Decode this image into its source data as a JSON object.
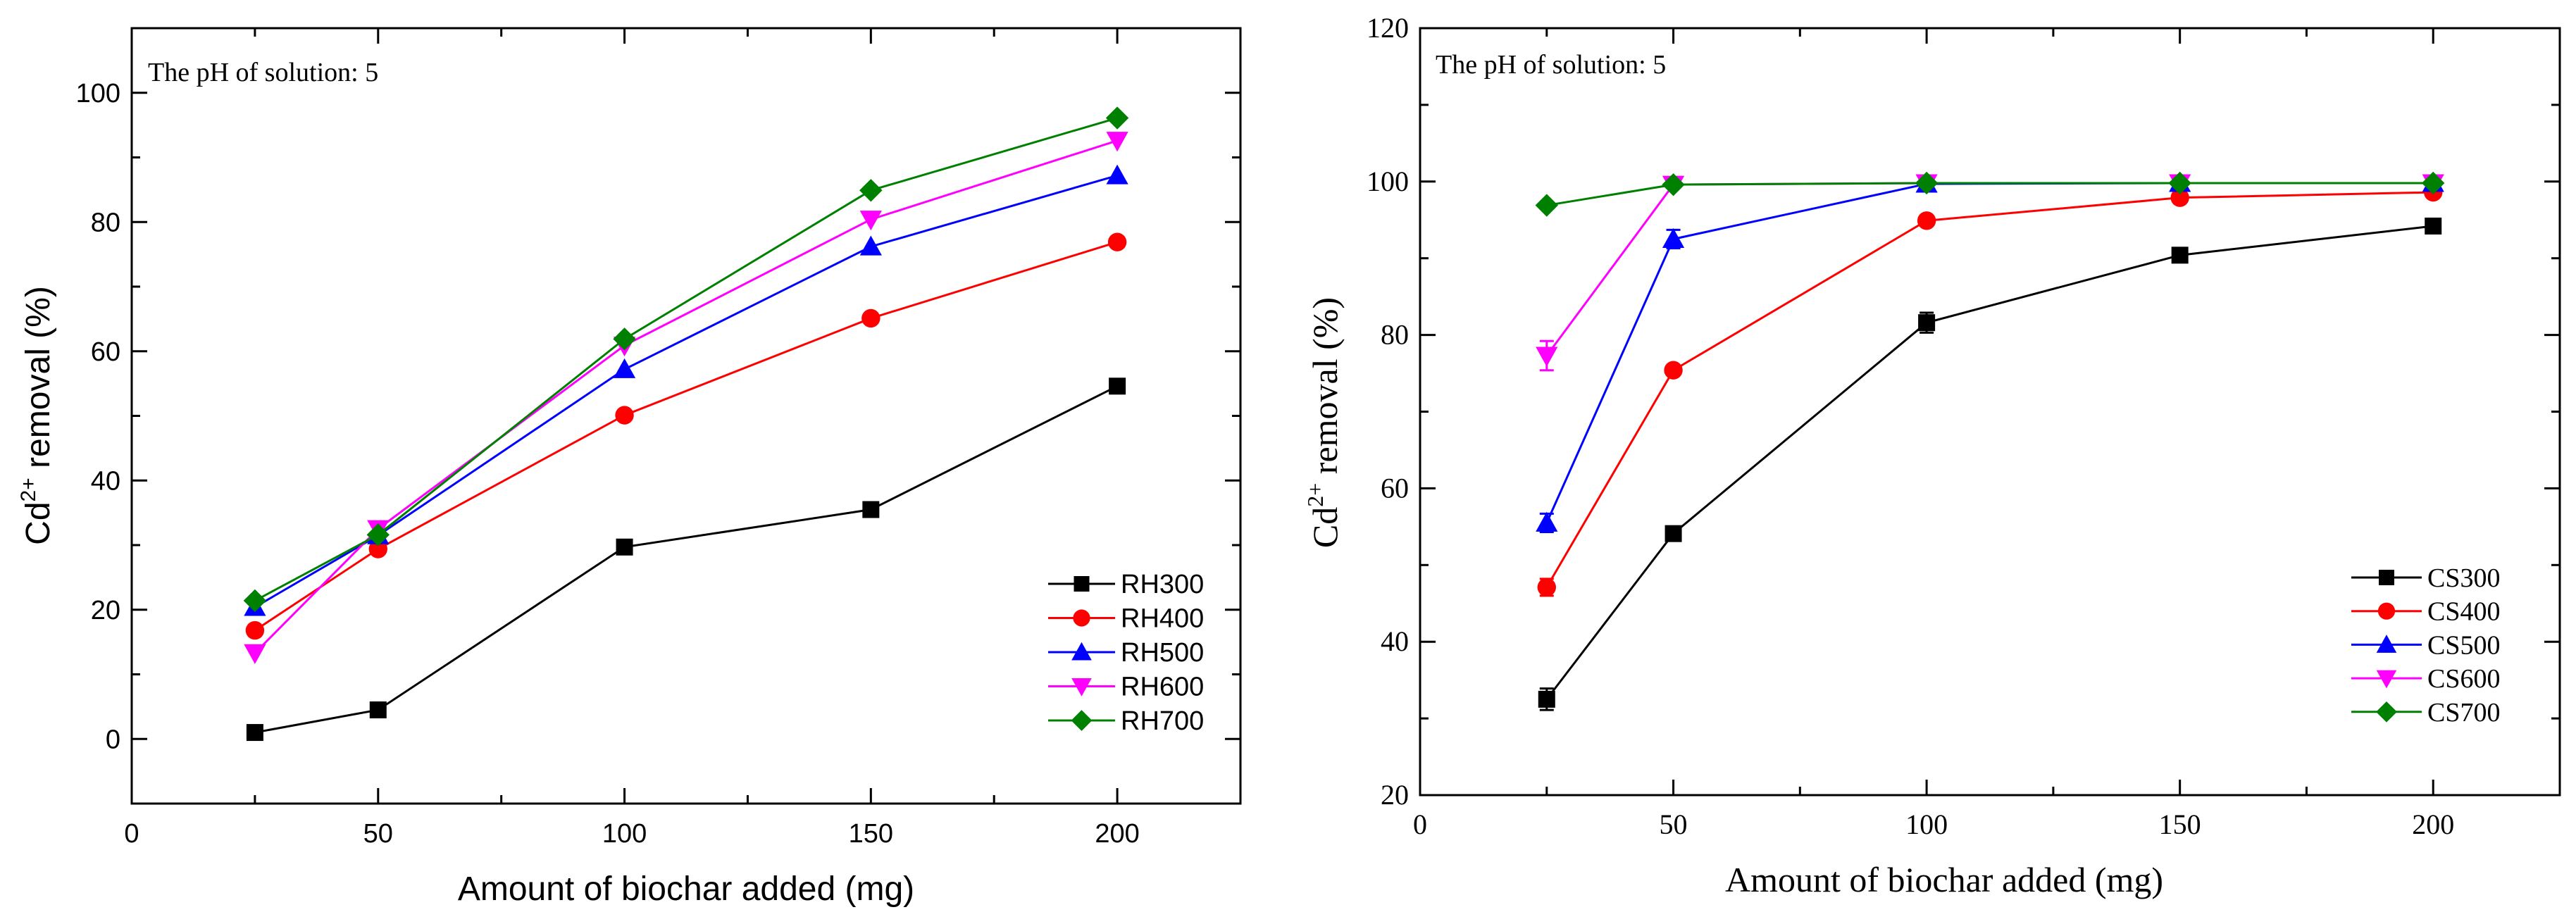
{
  "chart_data": [
    {
      "type": "line",
      "annotation": "The pH of solution: 5",
      "xlabel": "Amount of biochar added (mg)",
      "ylabel_main": "Cd",
      "ylabel_sup": "2+",
      "ylabel_rest": " removal (%)",
      "xlim": [
        0,
        225
      ],
      "ylim": [
        -10,
        110
      ],
      "xticks": [
        0,
        50,
        100,
        150,
        200
      ],
      "yticks": [
        0,
        20,
        40,
        60,
        80,
        100
      ],
      "x": [
        25,
        50,
        100,
        150,
        200
      ],
      "legend_position": "bottom-right",
      "grid": false,
      "series": [
        {
          "name": "RH300",
          "color": "#000000",
          "marker": "square",
          "values": [
            1,
            4.5,
            29.7,
            35.5,
            54.6
          ]
        },
        {
          "name": "RH400",
          "color": "#ff0000",
          "marker": "circle",
          "values": [
            16.8,
            29.4,
            50.1,
            65.1,
            76.9
          ]
        },
        {
          "name": "RH500",
          "color": "#0000ff",
          "marker": "triangle-up",
          "values": [
            20.4,
            31.5,
            57.2,
            76.2,
            87.2
          ]
        },
        {
          "name": "RH600",
          "color": "#ff00ff",
          "marker": "triangle-down",
          "values": [
            13.3,
            32.5,
            60.9,
            80.4,
            92.6
          ]
        },
        {
          "name": "RH700",
          "color": "#008000",
          "marker": "diamond",
          "values": [
            21.4,
            31.6,
            61.9,
            84.9,
            96.1
          ]
        }
      ]
    },
    {
      "type": "line",
      "annotation": "The pH of solution: 5",
      "xlabel": "Amount of biochar added (mg)",
      "ylabel_main": "Cd",
      "ylabel_sup": "2+",
      "ylabel_rest": " removal (%)",
      "xlim": [
        0,
        225
      ],
      "ylim": [
        20,
        120
      ],
      "xticks": [
        0,
        50,
        100,
        150,
        200
      ],
      "yticks": [
        20,
        40,
        60,
        80,
        100,
        120
      ],
      "x": [
        25,
        50,
        100,
        150,
        200
      ],
      "legend_position": "bottom-right",
      "grid": false,
      "series": [
        {
          "name": "CS300",
          "color": "#000000",
          "marker": "square",
          "values": [
            32.5,
            54.1,
            81.6,
            90.4,
            94.2
          ],
          "errors": [
            1.4,
            0.8,
            1.3,
            0.6,
            0.6
          ]
        },
        {
          "name": "CS400",
          "color": "#ff0000",
          "marker": "circle",
          "values": [
            47.1,
            75.4,
            94.9,
            97.9,
            98.6
          ],
          "errors": [
            1.1,
            0.6,
            0.6,
            0.4,
            0.4
          ]
        },
        {
          "name": "CS500",
          "color": "#0000ff",
          "marker": "triangle-up",
          "values": [
            55.5,
            92.5,
            99.7,
            99.8,
            99.8
          ],
          "errors": [
            1.2,
            1.2,
            0.3,
            0.2,
            0.2
          ]
        },
        {
          "name": "CS600",
          "color": "#ff00ff",
          "marker": "triangle-down",
          "values": [
            77.3,
            99.6,
            99.8,
            99.8,
            99.8
          ],
          "errors": [
            1.9,
            0.4,
            0.2,
            0.2,
            0.2
          ]
        },
        {
          "name": "CS700",
          "color": "#008000",
          "marker": "diamond",
          "values": [
            96.9,
            99.6,
            99.8,
            99.8,
            99.8
          ],
          "errors": [
            0.3,
            0.3,
            0.2,
            0.2,
            0.2
          ]
        }
      ]
    }
  ]
}
